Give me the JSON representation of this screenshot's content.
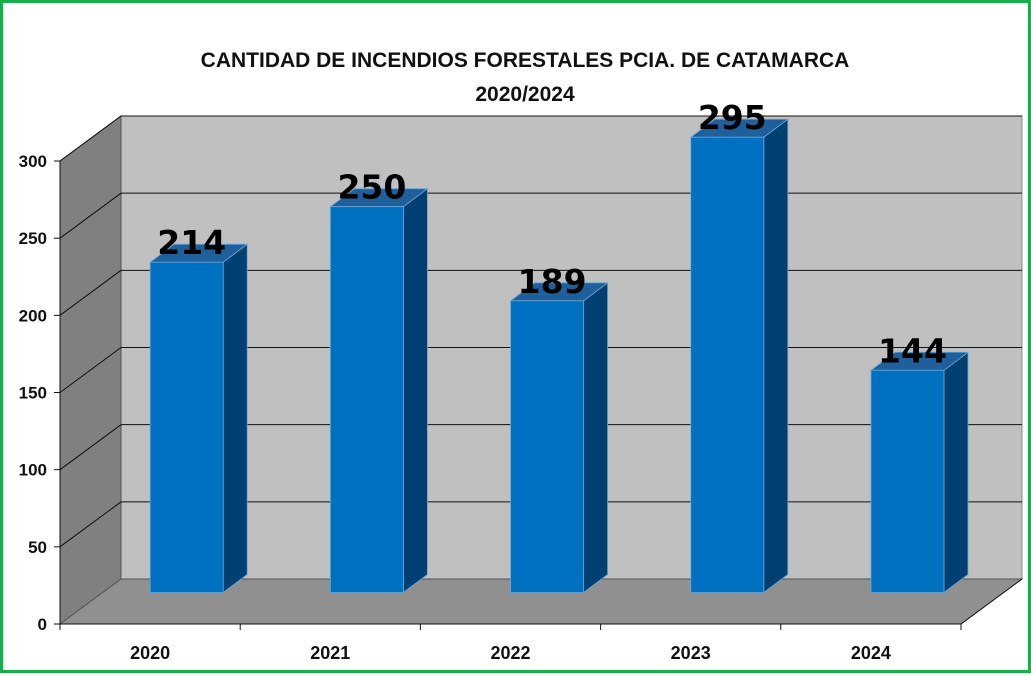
{
  "chart_data": {
    "type": "bar",
    "title": "CANTIDAD DE INCENDIOS FORESTALES PCIA. DE CATAMARCA",
    "subtitle": "2020/2024",
    "categories": [
      "2020",
      "2021",
      "2022",
      "2023",
      "2024"
    ],
    "values": [
      214,
      250,
      189,
      295,
      144
    ],
    "data_labels": [
      "214",
      "250",
      "189",
      "295",
      "144"
    ],
    "ylim": [
      0,
      300
    ],
    "y_ticks": [
      0,
      50,
      100,
      150,
      200,
      250,
      300
    ],
    "y_tick_labels": [
      "0",
      "50",
      "100",
      "150",
      "200",
      "250",
      "300"
    ],
    "xlabel": "",
    "ylabel": "",
    "grid": true,
    "legend": "none",
    "style": "3d-column",
    "colors": {
      "bar_front": "#0070c0",
      "bar_side": "#003f72",
      "bar_top": "#1f5f9c",
      "back_wall": "#c0c0c0",
      "side_wall": "#808080",
      "floor": "#909090",
      "border": "#16b04a"
    }
  }
}
